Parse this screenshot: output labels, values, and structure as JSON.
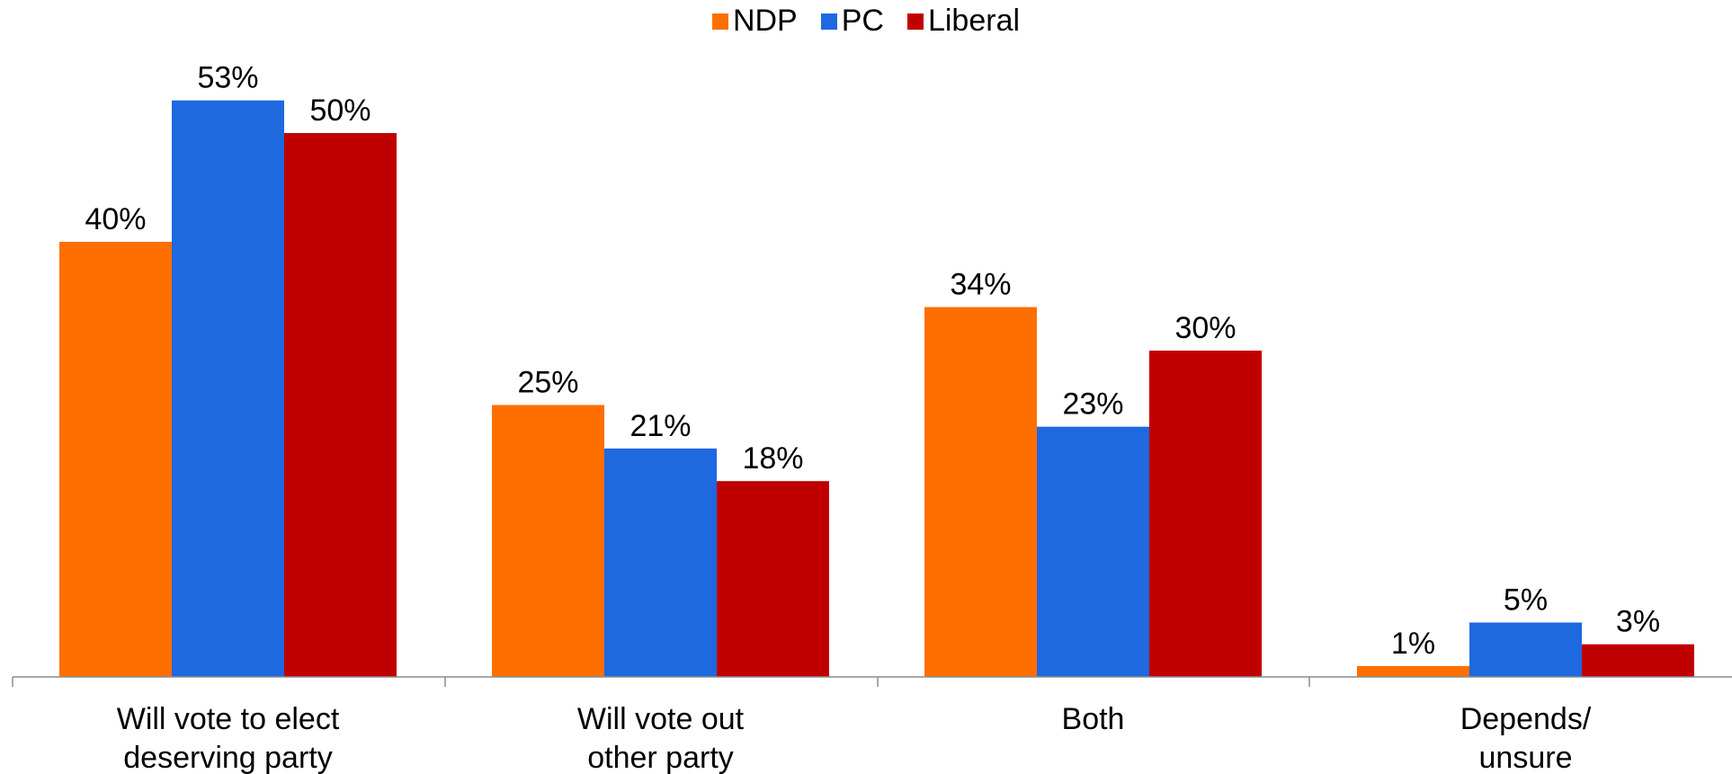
{
  "chart_data": {
    "type": "bar",
    "categories": [
      [
        "Will vote to elect",
        "deserving party"
      ],
      [
        "Will vote out",
        "other party"
      ],
      [
        "Both"
      ],
      [
        "Depends/",
        "unsure"
      ]
    ],
    "series": [
      {
        "name": "NDP",
        "color": "#ff6f00",
        "values": [
          40,
          25,
          34,
          1
        ]
      },
      {
        "name": "PC",
        "color": "#1e68e0",
        "values": [
          53,
          21,
          23,
          5
        ]
      },
      {
        "name": "Liberal",
        "color": "#c00000",
        "values": [
          50,
          18,
          30,
          3
        ]
      }
    ],
    "value_suffix": "%",
    "ylim": [
      0,
      60
    ],
    "grid": false,
    "legend_position": "top-center",
    "title": "",
    "xlabel": "",
    "ylabel": ""
  }
}
